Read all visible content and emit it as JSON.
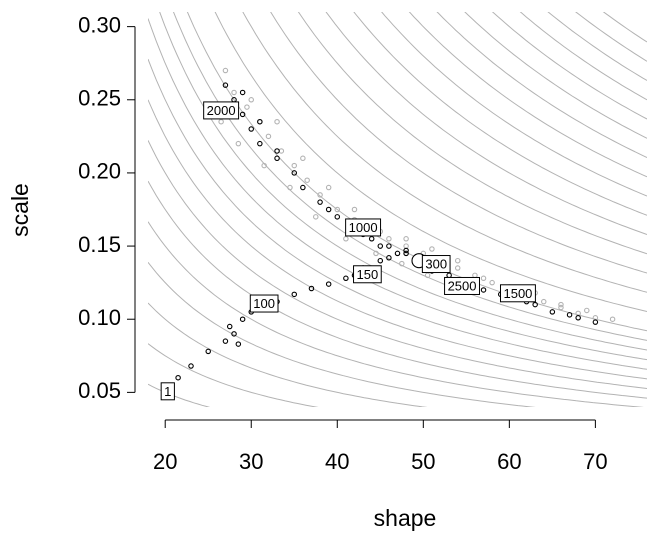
{
  "chart_data": {
    "type": "scatter",
    "xlabel": "shape",
    "ylabel": "scale",
    "xlim": [
      18,
      76
    ],
    "ylim": [
      0.04,
      0.31
    ],
    "xticks": [
      20,
      30,
      40,
      50,
      60,
      70
    ],
    "yticks": [
      0.05,
      {
        "value": 0.1,
        "label": "0.10"
      },
      0.15,
      {
        "value": 0.2,
        "label": "0.20"
      },
      0.25,
      {
        "value": 0.3,
        "label": "0.30"
      }
    ],
    "contour_color": "#b3b3b3",
    "contour_levels": [
      1,
      1.5,
      2,
      2.5,
      3,
      3.5,
      4,
      4.5,
      5,
      5.5,
      6,
      6.5,
      7,
      8,
      9,
      10,
      11,
      12,
      13,
      14,
      15,
      16,
      17,
      18,
      19,
      20,
      21,
      22
    ],
    "series": [
      {
        "color": "#b3b3b3",
        "fill": "none",
        "size": 2.2,
        "x": [
          27,
          28,
          29.5,
          31,
          32,
          33.5,
          35,
          36.5,
          38,
          40,
          42,
          44,
          46,
          48,
          50,
          52,
          54,
          56,
          58,
          60,
          62,
          64,
          66,
          68,
          70,
          72,
          30,
          33,
          36,
          39,
          42,
          45,
          48,
          51,
          54,
          57,
          60,
          63,
          66,
          69,
          26.5,
          28.5,
          31.5,
          34.5,
          37.5,
          41,
          44.5,
          47.5,
          50.5,
          53.5
        ],
        "y": [
          0.27,
          0.255,
          0.245,
          0.235,
          0.225,
          0.215,
          0.205,
          0.195,
          0.185,
          0.175,
          0.168,
          0.162,
          0.155,
          0.15,
          0.145,
          0.14,
          0.135,
          0.13,
          0.125,
          0.12,
          0.116,
          0.112,
          0.108,
          0.104,
          0.101,
          0.1,
          0.25,
          0.235,
          0.21,
          0.19,
          0.175,
          0.16,
          0.155,
          0.148,
          0.14,
          0.128,
          0.122,
          0.118,
          0.11,
          0.106,
          0.235,
          0.22,
          0.205,
          0.19,
          0.17,
          0.155,
          0.145,
          0.138,
          0.13,
          0.122
        ]
      },
      {
        "color": "#000000",
        "fill": "none",
        "size": 2.2,
        "x": [
          20.5,
          21.5,
          23,
          25,
          27,
          28,
          28.5,
          27.5,
          29,
          30,
          31,
          33,
          35,
          37,
          39,
          41,
          42,
          43,
          45,
          46,
          47,
          49,
          48,
          45,
          42,
          40,
          38,
          35,
          33,
          31,
          30,
          29,
          28,
          27,
          29,
          31,
          33,
          36,
          39,
          43,
          46,
          50,
          53,
          56,
          59,
          62,
          65,
          68,
          70,
          67,
          63,
          60,
          57,
          54,
          51,
          48,
          44
        ],
        "y": [
          0.05,
          0.06,
          0.068,
          0.078,
          0.085,
          0.09,
          0.083,
          0.095,
          0.1,
          0.105,
          0.108,
          0.112,
          0.117,
          0.121,
          0.124,
          0.128,
          0.13,
          0.135,
          0.14,
          0.142,
          0.145,
          0.14,
          0.145,
          0.15,
          0.16,
          0.17,
          0.18,
          0.2,
          0.21,
          0.22,
          0.23,
          0.24,
          0.25,
          0.26,
          0.255,
          0.235,
          0.215,
          0.19,
          0.175,
          0.158,
          0.15,
          0.14,
          0.13,
          0.122,
          0.117,
          0.112,
          0.105,
          0.101,
          0.098,
          0.103,
          0.11,
          0.115,
          0.12,
          0.126,
          0.133,
          0.147,
          0.155
        ]
      },
      {
        "color": "#000000",
        "fill": "#ffffff",
        "size": 7,
        "x": [
          49.5
        ],
        "y": [
          0.14
        ]
      }
    ],
    "annotations": [
      {
        "text": "1",
        "x": 20.3,
        "y": 0.05
      },
      {
        "text": "100",
        "x": 31.5,
        "y": 0.11
      },
      {
        "text": "150",
        "x": 43.5,
        "y": 0.13
      },
      {
        "text": "300",
        "x": 51.5,
        "y": 0.137
      },
      {
        "text": "1000",
        "x": 43,
        "y": 0.162
      },
      {
        "text": "1500",
        "x": 61,
        "y": 0.117
      },
      {
        "text": "2000",
        "x": 26.5,
        "y": 0.242
      },
      {
        "text": "2500",
        "x": 54.5,
        "y": 0.122
      }
    ]
  }
}
